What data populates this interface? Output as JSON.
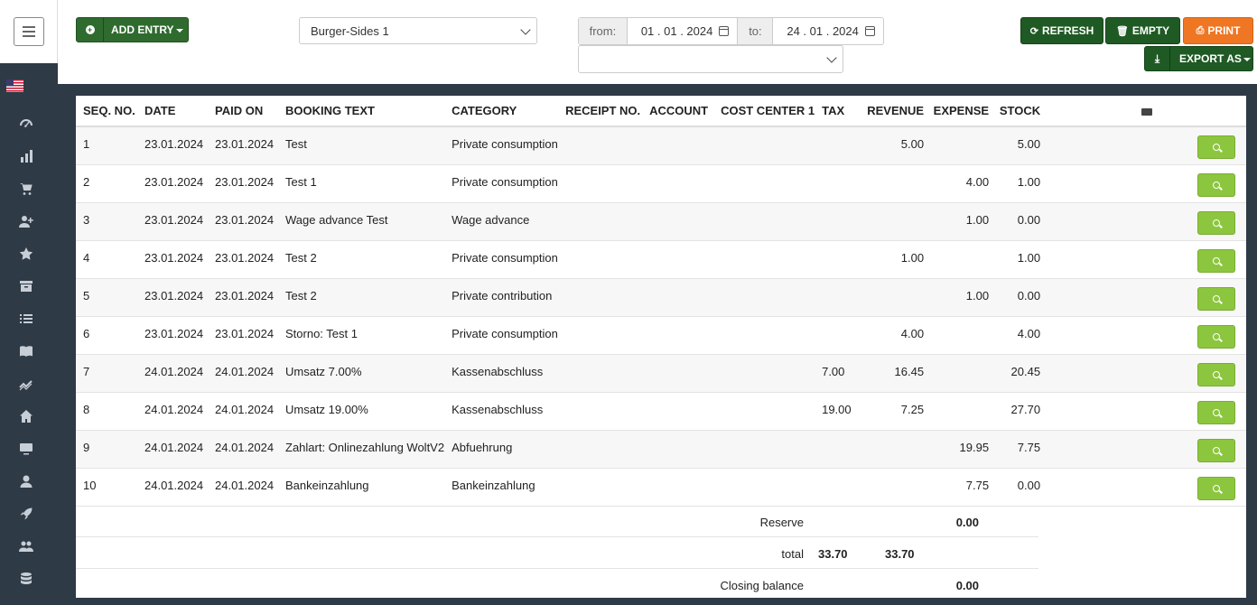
{
  "toolbar": {
    "add_entry_label": "ADD ENTRY",
    "store_select_value": "Burger-Sides 1",
    "from_label": "from:",
    "from_date": "01 . 01 . 2024",
    "to_label": "to:",
    "to_date": "24 . 01 . 2024",
    "secondary_select_value": "",
    "refresh_label": "REFRESH",
    "empty_label": "EMPTY",
    "print_label": "PRINT",
    "export_label": "EXPORT AS"
  },
  "colors": {
    "sidebar_bg": "#2e3a46",
    "primary_green": "#2f6b2f",
    "orange": "#ef7623",
    "search_green": "#8cc63f"
  },
  "sidebar": {
    "icons": [
      "gauge-icon",
      "bar-chart-icon",
      "cart-icon",
      "user-plus-icon",
      "star-icon",
      "archive-icon",
      "list-icon",
      "book-icon",
      "trend-icon",
      "home-icon",
      "monitor-icon",
      "user-icon",
      "rocket-icon",
      "users-icon",
      "database-icon"
    ]
  },
  "table": {
    "headers": [
      "SEQ. NO.",
      "DATE",
      "PAID ON",
      "BOOKING TEXT",
      "CATEGORY",
      "RECEIPT NO.",
      "ACCOUNT",
      "COST CENTER 1",
      "TAX",
      "REVENUE",
      "EXPENSE",
      "STOCK"
    ],
    "rows": [
      {
        "seq": "1",
        "date": "23.01.2024",
        "paid": "23.01.2024",
        "text": "Test",
        "category": "Private consumption",
        "receipt": "",
        "account": "",
        "cost": "",
        "tax": "",
        "revenue": "5.00",
        "expense": "",
        "stock": "5.00"
      },
      {
        "seq": "2",
        "date": "23.01.2024",
        "paid": "23.01.2024",
        "text": "Test 1",
        "category": "Private consumption",
        "receipt": "",
        "account": "",
        "cost": "",
        "tax": "",
        "revenue": "",
        "expense": "4.00",
        "stock": "1.00"
      },
      {
        "seq": "3",
        "date": "23.01.2024",
        "paid": "23.01.2024",
        "text": "Wage advance Test",
        "category": "Wage advance",
        "receipt": "",
        "account": "",
        "cost": "",
        "tax": "",
        "revenue": "",
        "expense": "1.00",
        "stock": "0.00"
      },
      {
        "seq": "4",
        "date": "23.01.2024",
        "paid": "23.01.2024",
        "text": "Test 2",
        "category": "Private consumption",
        "receipt": "",
        "account": "",
        "cost": "",
        "tax": "",
        "revenue": "1.00",
        "expense": "",
        "stock": "1.00"
      },
      {
        "seq": "5",
        "date": "23.01.2024",
        "paid": "23.01.2024",
        "text": "Test 2",
        "category": "Private contribution",
        "receipt": "",
        "account": "",
        "cost": "",
        "tax": "",
        "revenue": "",
        "expense": "1.00",
        "stock": "0.00"
      },
      {
        "seq": "6",
        "date": "23.01.2024",
        "paid": "23.01.2024",
        "text": "Storno: Test 1",
        "category": "Private consumption",
        "receipt": "",
        "account": "",
        "cost": "",
        "tax": "",
        "revenue": "4.00",
        "expense": "",
        "stock": "4.00"
      },
      {
        "seq": "7",
        "date": "24.01.2024",
        "paid": "24.01.2024",
        "text": "Umsatz 7.00%",
        "category": "Kassenabschluss",
        "receipt": "",
        "account": "",
        "cost": "",
        "tax": "7.00",
        "revenue": "16.45",
        "expense": "",
        "stock": "20.45"
      },
      {
        "seq": "8",
        "date": "24.01.2024",
        "paid": "24.01.2024",
        "text": "Umsatz 19.00%",
        "category": "Kassenabschluss",
        "receipt": "",
        "account": "",
        "cost": "",
        "tax": "19.00",
        "revenue": "7.25",
        "expense": "",
        "stock": "27.70"
      },
      {
        "seq": "9",
        "date": "24.01.2024",
        "paid": "24.01.2024",
        "text": "Zahlart: Onlinezahlung WoltV2",
        "category": "Abfuehrung",
        "receipt": "",
        "account": "",
        "cost": "",
        "tax": "",
        "revenue": "",
        "expense": "19.95",
        "stock": "7.75"
      },
      {
        "seq": "10",
        "date": "24.01.2024",
        "paid": "24.01.2024",
        "text": "Bankeinzahlung",
        "category": "Bankeinzahlung",
        "receipt": "",
        "account": "",
        "cost": "",
        "tax": "",
        "revenue": "",
        "expense": "7.75",
        "stock": "0.00"
      }
    ]
  },
  "summary": {
    "reserve_label": "Reserve",
    "reserve_value": "0.00",
    "total_label": "total",
    "total_tax": "33.70",
    "total_revenue": "33.70",
    "closing_label": "Closing balance",
    "closing_value": "0.00"
  }
}
